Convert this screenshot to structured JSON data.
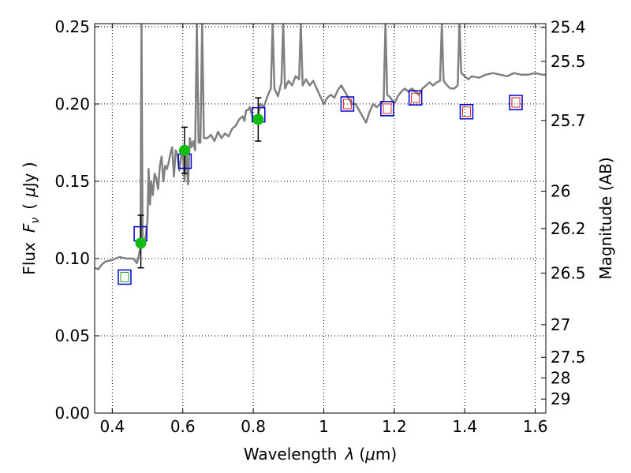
{
  "chart_data": {
    "type": "scatter",
    "xlabel_prefix": "Wavelength",
    "xlabel_symbol": "λ",
    "xlabel_unit_open": "(",
    "xlabel_unit_mu": "μ",
    "xlabel_unit_rest": "m)",
    "ylabel_prefix": "Flux",
    "ylabel_symbol": "F",
    "ylabel_subscript": "ν",
    "ylabel_unit_open": "(",
    "ylabel_unit_mu": "μ",
    "ylabel_unit_rest": "Jy )",
    "y2label": "Magnitude (AB)",
    "xlim": [
      0.35,
      1.63
    ],
    "ylim": [
      0.0,
      0.252
    ],
    "x_ticks": [
      0.4,
      0.6,
      0.8,
      1.0,
      1.2,
      1.4,
      1.6
    ],
    "x_tick_labels": [
      "0.4",
      "0.6",
      "0.8",
      "1",
      "1.2",
      "1.4",
      "1.6"
    ],
    "y_ticks": [
      0.0,
      0.05,
      0.1,
      0.15,
      0.2,
      0.25
    ],
    "y_tick_labels": [
      "0.00",
      "0.05",
      "0.10",
      "0.15",
      "0.20",
      "0.25"
    ],
    "y2_ticks": [
      {
        "label": "25.4",
        "flux": 0.2496
      },
      {
        "label": "25.5",
        "flux": 0.2276
      },
      {
        "label": "25.7",
        "flux": 0.1893
      },
      {
        "label": "26",
        "flux": 0.1436
      },
      {
        "label": "26.2",
        "flux": 0.1194
      },
      {
        "label": "26.5",
        "flux": 0.0906
      },
      {
        "label": "27",
        "flux": 0.0572
      },
      {
        "label": "27.5",
        "flux": 0.0361
      },
      {
        "label": "28",
        "flux": 0.0228
      },
      {
        "label": "29",
        "flux": 0.0091
      }
    ],
    "grid": true,
    "colors": {
      "spectrum": "#808080",
      "model_box": "#0000cc",
      "observed_point": "#11bb11",
      "error_bar": "#000000",
      "inner_green": "#22aa22",
      "inner_red": "#dd2222"
    },
    "spectrum": [
      [
        0.35,
        0.094
      ],
      [
        0.36,
        0.093
      ],
      [
        0.37,
        0.096
      ],
      [
        0.38,
        0.098
      ],
      [
        0.4,
        0.099
      ],
      [
        0.42,
        0.101
      ],
      [
        0.44,
        0.1
      ],
      [
        0.46,
        0.1
      ],
      [
        0.47,
        0.097
      ],
      [
        0.475,
        0.102
      ],
      [
        0.48,
        0.107
      ],
      [
        0.483,
        0.252
      ],
      [
        0.486,
        0.11
      ],
      [
        0.49,
        0.109
      ],
      [
        0.495,
        0.115
      ],
      [
        0.5,
        0.125
      ],
      [
        0.503,
        0.158
      ],
      [
        0.507,
        0.135
      ],
      [
        0.51,
        0.15
      ],
      [
        0.515,
        0.141
      ],
      [
        0.52,
        0.155
      ],
      [
        0.525,
        0.152
      ],
      [
        0.53,
        0.145
      ],
      [
        0.535,
        0.16
      ],
      [
        0.54,
        0.166
      ],
      [
        0.545,
        0.15
      ],
      [
        0.55,
        0.16
      ],
      [
        0.555,
        0.158
      ],
      [
        0.56,
        0.162
      ],
      [
        0.565,
        0.168
      ],
      [
        0.57,
        0.172
      ],
      [
        0.575,
        0.153
      ],
      [
        0.58,
        0.17
      ],
      [
        0.585,
        0.167
      ],
      [
        0.59,
        0.157
      ],
      [
        0.595,
        0.165
      ],
      [
        0.6,
        0.17
      ],
      [
        0.605,
        0.15
      ],
      [
        0.61,
        0.172
      ],
      [
        0.615,
        0.148
      ],
      [
        0.62,
        0.178
      ],
      [
        0.625,
        0.172
      ],
      [
        0.63,
        0.176
      ],
      [
        0.635,
        0.17
      ],
      [
        0.64,
        0.252
      ],
      [
        0.645,
        0.175
      ],
      [
        0.65,
        0.175
      ],
      [
        0.655,
        0.252
      ],
      [
        0.66,
        0.178
      ],
      [
        0.67,
        0.178
      ],
      [
        0.68,
        0.18
      ],
      [
        0.69,
        0.176
      ],
      [
        0.7,
        0.182
      ],
      [
        0.71,
        0.178
      ],
      [
        0.72,
        0.181
      ],
      [
        0.73,
        0.179
      ],
      [
        0.74,
        0.184
      ],
      [
        0.75,
        0.186
      ],
      [
        0.76,
        0.19
      ],
      [
        0.77,
        0.192
      ],
      [
        0.775,
        0.189
      ],
      [
        0.78,
        0.196
      ],
      [
        0.785,
        0.196
      ],
      [
        0.79,
        0.198
      ],
      [
        0.8,
        0.19
      ],
      [
        0.81,
        0.188
      ],
      [
        0.815,
        0.194
      ],
      [
        0.82,
        0.2
      ],
      [
        0.83,
        0.198
      ],
      [
        0.84,
        0.205
      ],
      [
        0.85,
        0.21
      ],
      [
        0.855,
        0.252
      ],
      [
        0.86,
        0.21
      ],
      [
        0.87,
        0.205
      ],
      [
        0.88,
        0.214
      ],
      [
        0.885,
        0.252
      ],
      [
        0.89,
        0.21
      ],
      [
        0.9,
        0.215
      ],
      [
        0.91,
        0.212
      ],
      [
        0.92,
        0.218
      ],
      [
        0.93,
        0.216
      ],
      [
        0.935,
        0.252
      ],
      [
        0.94,
        0.212
      ],
      [
        0.95,
        0.216
      ],
      [
        0.96,
        0.212
      ],
      [
        0.97,
        0.215
      ],
      [
        0.98,
        0.21
      ],
      [
        0.99,
        0.205
      ],
      [
        1.0,
        0.2
      ],
      [
        1.01,
        0.204
      ],
      [
        1.02,
        0.206
      ],
      [
        1.03,
        0.204
      ],
      [
        1.04,
        0.209
      ],
      [
        1.05,
        0.212
      ],
      [
        1.06,
        0.208
      ],
      [
        1.07,
        0.204
      ],
      [
        1.08,
        0.2
      ],
      [
        1.09,
        0.2
      ],
      [
        1.1,
        0.196
      ],
      [
        1.11,
        0.192
      ],
      [
        1.12,
        0.188
      ],
      [
        1.13,
        0.195
      ],
      [
        1.14,
        0.2
      ],
      [
        1.15,
        0.198
      ],
      [
        1.16,
        0.2
      ],
      [
        1.17,
        0.202
      ],
      [
        1.175,
        0.252
      ],
      [
        1.18,
        0.206
      ],
      [
        1.19,
        0.204
      ],
      [
        1.2,
        0.2
      ],
      [
        1.21,
        0.205
      ],
      [
        1.22,
        0.208
      ],
      [
        1.23,
        0.21
      ],
      [
        1.24,
        0.208
      ],
      [
        1.25,
        0.21
      ],
      [
        1.26,
        0.208
      ],
      [
        1.27,
        0.206
      ],
      [
        1.28,
        0.21
      ],
      [
        1.29,
        0.212
      ],
      [
        1.3,
        0.214
      ],
      [
        1.31,
        0.212
      ],
      [
        1.32,
        0.214
      ],
      [
        1.33,
        0.215
      ],
      [
        1.335,
        0.252
      ],
      [
        1.34,
        0.215
      ],
      [
        1.35,
        0.212
      ],
      [
        1.36,
        0.21
      ],
      [
        1.37,
        0.21
      ],
      [
        1.38,
        0.212
      ],
      [
        1.385,
        0.252
      ],
      [
        1.39,
        0.22
      ],
      [
        1.4,
        0.218
      ],
      [
        1.41,
        0.216
      ],
      [
        1.42,
        0.218
      ],
      [
        1.44,
        0.217
      ],
      [
        1.46,
        0.219
      ],
      [
        1.48,
        0.22
      ],
      [
        1.5,
        0.219
      ],
      [
        1.52,
        0.218
      ],
      [
        1.54,
        0.22
      ],
      [
        1.56,
        0.219
      ],
      [
        1.58,
        0.219
      ],
      [
        1.6,
        0.22
      ],
      [
        1.62,
        0.219
      ],
      [
        1.63,
        0.219
      ]
    ],
    "model_boxes": [
      {
        "x": 0.435,
        "y": 0.088,
        "inner": "green"
      },
      {
        "x": 0.48,
        "y": 0.116,
        "inner": "none"
      },
      {
        "x": 0.606,
        "y": 0.163,
        "inner": "none"
      },
      {
        "x": 0.815,
        "y": 0.193,
        "inner": "none"
      },
      {
        "x": 1.067,
        "y": 0.2,
        "inner": "red"
      },
      {
        "x": 1.18,
        "y": 0.197,
        "inner": "red"
      },
      {
        "x": 1.26,
        "y": 0.204,
        "inner": "red"
      },
      {
        "x": 1.405,
        "y": 0.195,
        "inner": "red"
      },
      {
        "x": 1.545,
        "y": 0.201,
        "inner": "red"
      }
    ],
    "observed_points": [
      {
        "x": 0.481,
        "y": 0.11,
        "yerr_low": 0.094,
        "yerr_high": 0.128
      },
      {
        "x": 0.605,
        "y": 0.17,
        "yerr_low": 0.155,
        "yerr_high": 0.185
      },
      {
        "x": 0.814,
        "y": 0.19,
        "yerr_low": 0.176,
        "yerr_high": 0.204
      }
    ]
  }
}
